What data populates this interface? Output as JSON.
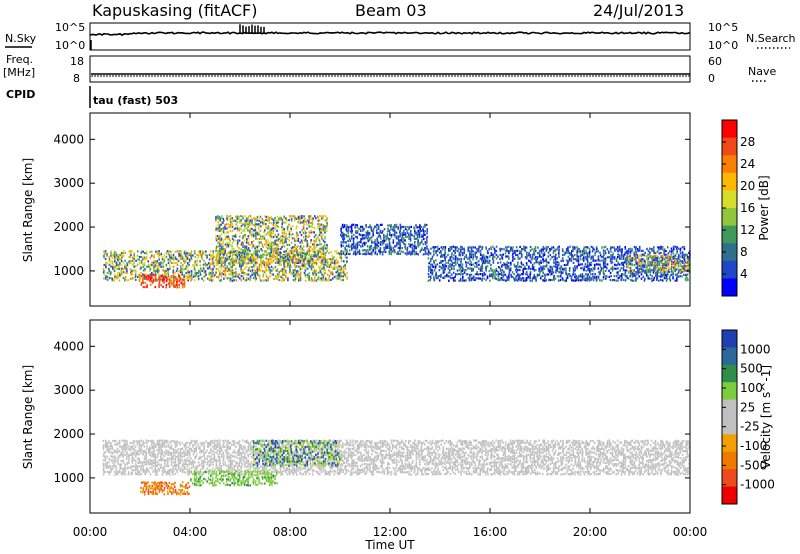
{
  "header": {
    "station": "Kapuskasing (fitACF)",
    "beam": "Beam 03",
    "date": "24/Jul/2013"
  },
  "top_panels": {
    "nsky_label": "N.Sky",
    "nsearch_label": "N.Search",
    "nsky_ticks": [
      "10^5",
      "10^0"
    ],
    "nsearch_ticks": [
      "10^5",
      "10^0"
    ],
    "freq_label": "Freq.",
    "freq_unit": "[MHz]",
    "freq_ticks": [
      "18",
      "8"
    ],
    "nave_label": "Nave",
    "nave_ticks": [
      "60",
      "0"
    ],
    "cpid_label": "CPID",
    "cpid_text": "tau (fast) 503"
  },
  "chart_data": [
    {
      "type": "heatmap",
      "panel": "power",
      "xlabel": "Time UT",
      "ylabel": "Slant Range [km]",
      "x_ticks": [
        "00:00",
        "04:00",
        "08:00",
        "12:00",
        "16:00",
        "20:00",
        "00:00"
      ],
      "xlim_hours": [
        0,
        24
      ],
      "ylim": [
        200,
        4600
      ],
      "y_ticks": [
        1000,
        2000,
        3000,
        4000
      ],
      "colorbar_label": "Power [dB]",
      "colorbar_ticks": [
        "28",
        "24",
        "20",
        "16",
        "12",
        "8",
        "4"
      ],
      "colorbar_colors": [
        "#ff0000",
        "#f04818",
        "#fb8000",
        "#ffb800",
        "#d7db2a",
        "#8fc63c",
        "#3f9a5a",
        "#2e6f8e",
        "#2046c9",
        "#0000ff"
      ],
      "echo_regions": [
        {
          "t0": 0.5,
          "t1": 10.3,
          "r0": 800,
          "r1": 1500,
          "level": "moderate"
        },
        {
          "t0": 2.0,
          "t1": 3.8,
          "r0": 650,
          "r1": 950,
          "level": "high"
        },
        {
          "t0": 5.0,
          "t1": 9.5,
          "r0": 1200,
          "r1": 2300,
          "level": "moderate"
        },
        {
          "t0": 10.0,
          "t1": 13.5,
          "r0": 1400,
          "r1": 2100,
          "level": "low"
        },
        {
          "t0": 13.5,
          "t1": 24.0,
          "r0": 800,
          "r1": 1600,
          "level": "low"
        },
        {
          "t0": 21.5,
          "t1": 24.0,
          "r0": 1000,
          "r1": 1400,
          "level": "moderate"
        }
      ]
    },
    {
      "type": "heatmap",
      "panel": "velocity",
      "xlabel": "Time UT",
      "ylabel": "Slant Range [km]",
      "x_ticks": [
        "00:00",
        "04:00",
        "08:00",
        "12:00",
        "16:00",
        "20:00",
        "00:00"
      ],
      "xlim_hours": [
        0,
        24
      ],
      "ylim": [
        200,
        4600
      ],
      "y_ticks": [
        1000,
        2000,
        3000,
        4000
      ],
      "colorbar_label": "Velocity [m s^-1]",
      "colorbar_ticks": [
        "1000",
        "500",
        "100",
        "25",
        "-25",
        "-100",
        "-500",
        "-1000"
      ],
      "colorbar_colors": [
        "#1f3fb5",
        "#2a6a9a",
        "#2f8f4a",
        "#7ccd3c",
        "#c0c0c0",
        "#c0c0c0",
        "#f0a000",
        "#f07a00",
        "#ee4a1c",
        "#ee0000"
      ],
      "echo_regions": [
        {
          "t0": 0.5,
          "t1": 24.0,
          "r0": 1100,
          "r1": 1900,
          "level": "ground"
        },
        {
          "t0": 2.0,
          "t1": 4.0,
          "r0": 650,
          "r1": 950,
          "level": "negative"
        },
        {
          "t0": 4.0,
          "t1": 7.5,
          "r0": 850,
          "r1": 1200,
          "level": "positive"
        },
        {
          "t0": 6.5,
          "t1": 10.0,
          "r0": 1300,
          "r1": 1900,
          "level": "strong-positive"
        }
      ]
    }
  ]
}
